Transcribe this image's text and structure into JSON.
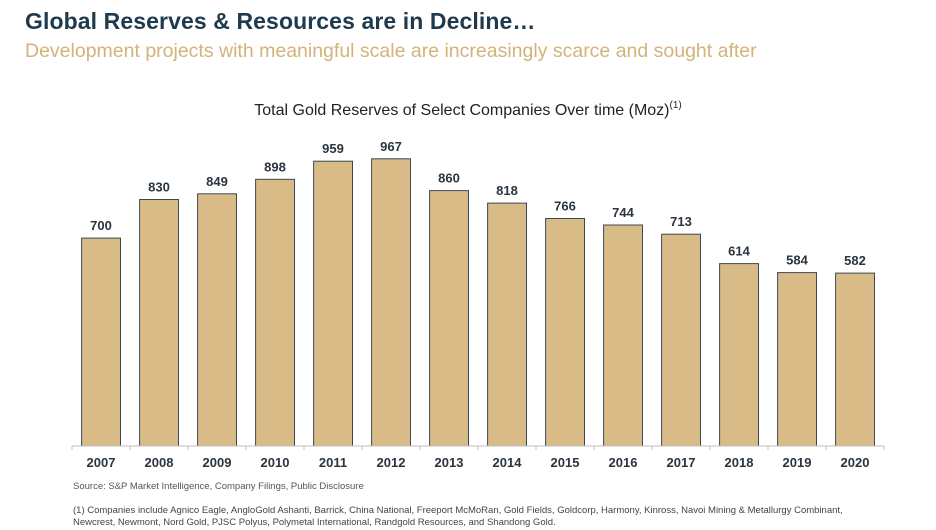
{
  "header": {
    "title": "Global Reserves & Resources are in Decline…",
    "subtitle": "Development projects with meaningful scale are increasingly scarce and sought after"
  },
  "chart_title": {
    "text": "Total Gold Reserves of Select Companies Over time (Moz)",
    "superscript": "(1)"
  },
  "colors": {
    "title": "#1f3a4d",
    "subtitle": "#d4b27a",
    "bar_fill": "#d9bb87",
    "bar_stroke": "#3a4a55",
    "axis": "#bfbfbf",
    "label": "#2a3540"
  },
  "chart_data": {
    "type": "bar",
    "title": "Total Gold Reserves of Select Companies Over time (Moz)",
    "xlabel": "",
    "ylabel": "",
    "categories": [
      "2007",
      "2008",
      "2009",
      "2010",
      "2011",
      "2012",
      "2013",
      "2014",
      "2015",
      "2016",
      "2017",
      "2018",
      "2019",
      "2020"
    ],
    "values": [
      700,
      830,
      849,
      898,
      959,
      967,
      860,
      818,
      766,
      744,
      713,
      614,
      584,
      582
    ],
    "ylim": [
      0,
      1000
    ],
    "y_axis_visible": false,
    "grid": false,
    "data_labels": true,
    "legend": "none",
    "units": "Moz"
  },
  "footer": {
    "source": "Source: S&P Market Intelligence, Company Filings, Public Disclosure",
    "footnote_line1": "(1) Companies include Agnico Eagle, AngloGold Ashanti, Barrick, China National, Freeport McMoRan, Gold Fields, Goldcorp,  Harmony, Kinross, Navoi Mining & Metallurgy Combinant,",
    "footnote_line2": "Newcrest, Newmont, Nord Gold, PJSC Polyus, Polymetal International, Randgold Resources, and Shandong Gold."
  }
}
